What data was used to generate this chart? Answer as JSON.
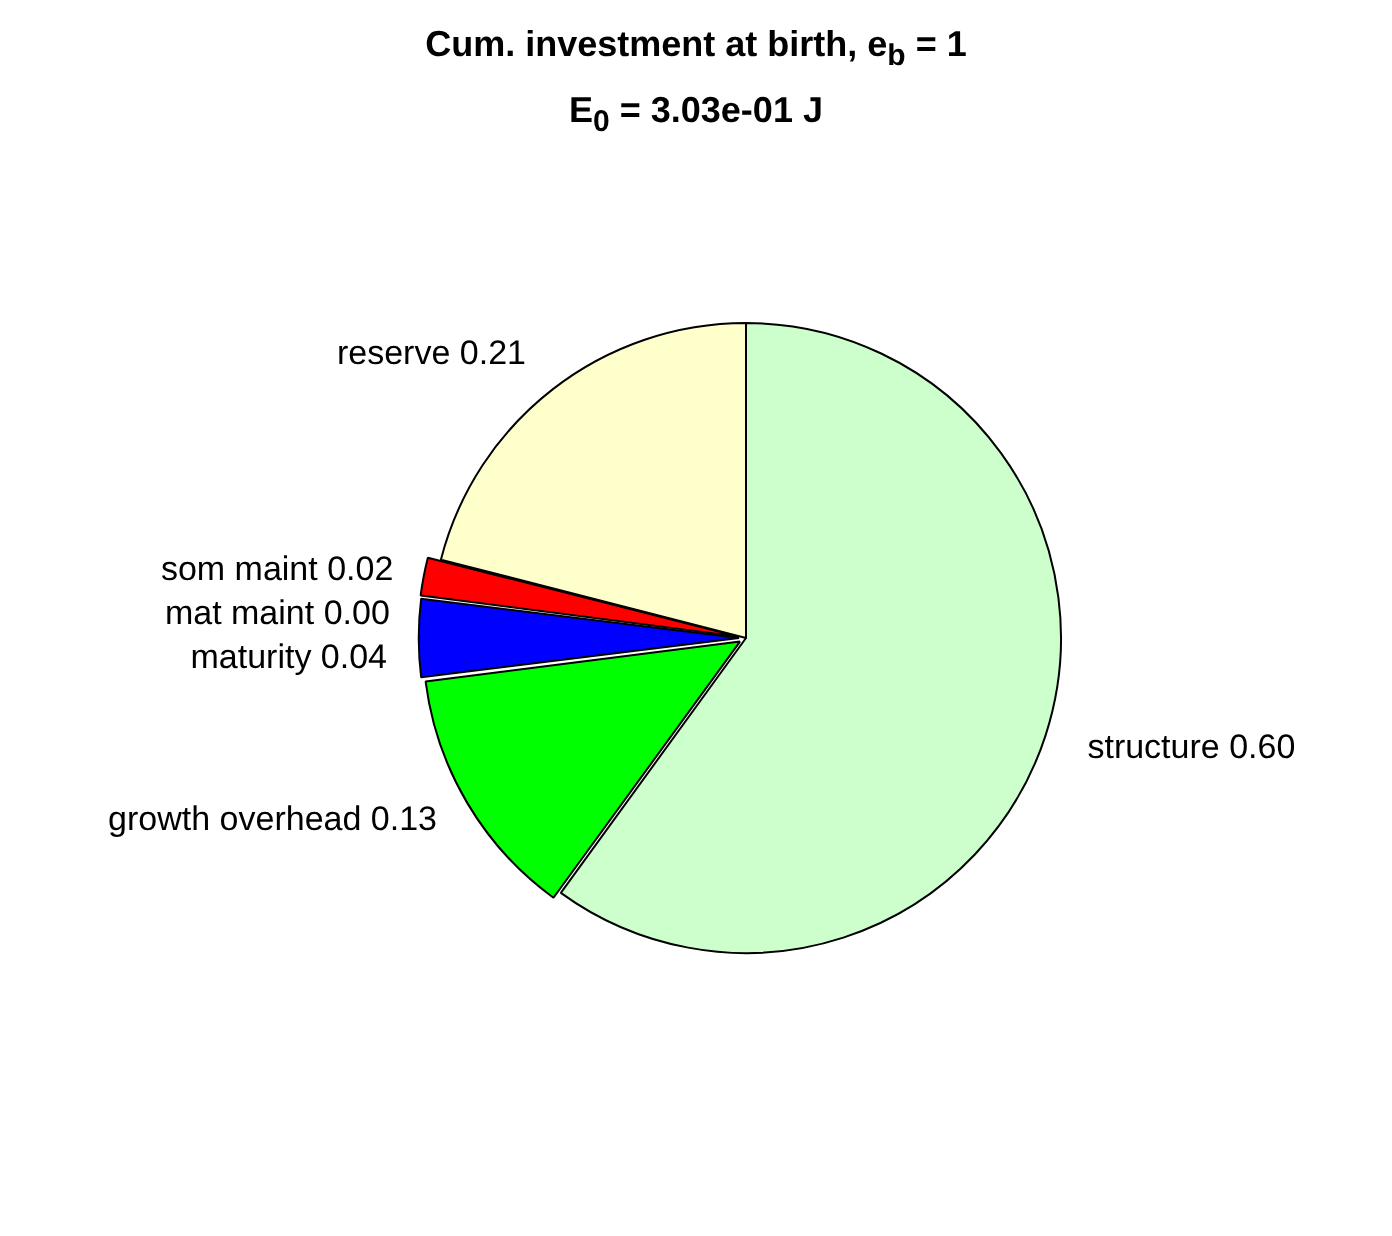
{
  "chart_data": {
    "type": "pie",
    "title": "Cum. investment at birth, e$_{b}$ = 1",
    "subtitle": "E$_{0}$ = 3.03e-01 J",
    "categories": [
      "structure",
      "growth overhead",
      "maturity",
      "mat maint",
      "som maint",
      "reserve"
    ],
    "values": [
      0.6,
      0.13,
      0.04,
      0.0,
      0.02,
      0.21
    ],
    "value_labels": [
      "0.60",
      "0.13",
      "0.04",
      "0.00",
      "0.02",
      "0.21"
    ],
    "colors": [
      "#ccffcc",
      "#00ff00",
      "#0000ff",
      "#ff00ff",
      "#ff0000",
      "#ffffcc"
    ],
    "legend": false
  }
}
